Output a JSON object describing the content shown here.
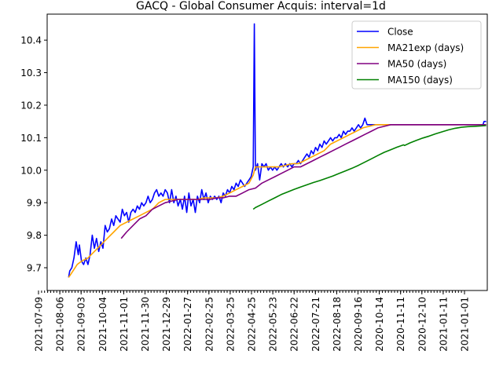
{
  "chart_data": {
    "type": "line",
    "title": "GACQ - Global Consumer Acquis: interval=1d",
    "xlabel": "",
    "ylabel": "",
    "ylim": [
      9.63,
      10.48
    ],
    "yticks": [
      "9.7",
      "9.8",
      "9.9",
      "10.0",
      "10.1",
      "10.2",
      "10.3",
      "10.4"
    ],
    "ytick_values": [
      9.7,
      9.8,
      9.9,
      10.0,
      10.1,
      10.2,
      10.3,
      10.4
    ],
    "xticks": [
      "2021-07-09",
      "2021-08-06",
      "2021-09-03",
      "2021-10-04",
      "2021-11-01",
      "2021-11-30",
      "2021-12-29",
      "2022-01-27",
      "2022-02-25",
      "2022-03-25",
      "2022-04-25",
      "2022-05-23",
      "2022-06-22",
      "2022-07-21",
      "2022-08-18",
      "2020-09-16",
      "2020-10-14",
      "2020-11-11",
      "2020-12-10",
      "2021-01-11",
      "2021-01-01"
    ],
    "xlim": [
      -2,
      408
    ],
    "legend": "top-right",
    "grid": false,
    "series": [
      {
        "name": "Close",
        "color": "#0000ff",
        "points": [
          [
            18,
            9.67
          ],
          [
            19,
            9.69
          ],
          [
            21,
            9.7
          ],
          [
            23,
            9.73
          ],
          [
            25,
            9.78
          ],
          [
            27,
            9.74
          ],
          [
            28,
            9.77
          ],
          [
            30,
            9.72
          ],
          [
            32,
            9.71
          ],
          [
            34,
            9.73
          ],
          [
            36,
            9.71
          ],
          [
            38,
            9.74
          ],
          [
            40,
            9.8
          ],
          [
            42,
            9.76
          ],
          [
            44,
            9.79
          ],
          [
            46,
            9.75
          ],
          [
            48,
            9.78
          ],
          [
            50,
            9.76
          ],
          [
            52,
            9.83
          ],
          [
            54,
            9.81
          ],
          [
            56,
            9.82
          ],
          [
            58,
            9.85
          ],
          [
            60,
            9.83
          ],
          [
            62,
            9.86
          ],
          [
            64,
            9.85
          ],
          [
            66,
            9.84
          ],
          [
            68,
            9.88
          ],
          [
            70,
            9.86
          ],
          [
            72,
            9.87
          ],
          [
            74,
            9.84
          ],
          [
            76,
            9.87
          ],
          [
            78,
            9.88
          ],
          [
            80,
            9.87
          ],
          [
            82,
            9.89
          ],
          [
            84,
            9.88
          ],
          [
            86,
            9.9
          ],
          [
            88,
            9.89
          ],
          [
            90,
            9.9
          ],
          [
            92,
            9.92
          ],
          [
            94,
            9.9
          ],
          [
            96,
            9.91
          ],
          [
            98,
            9.93
          ],
          [
            100,
            9.94
          ],
          [
            102,
            9.92
          ],
          [
            104,
            9.93
          ],
          [
            106,
            9.92
          ],
          [
            108,
            9.94
          ],
          [
            110,
            9.93
          ],
          [
            112,
            9.9
          ],
          [
            114,
            9.94
          ],
          [
            116,
            9.9
          ],
          [
            118,
            9.92
          ],
          [
            120,
            9.89
          ],
          [
            122,
            9.91
          ],
          [
            124,
            9.88
          ],
          [
            126,
            9.92
          ],
          [
            128,
            9.87
          ],
          [
            130,
            9.93
          ],
          [
            132,
            9.89
          ],
          [
            134,
            9.91
          ],
          [
            136,
            9.87
          ],
          [
            138,
            9.92
          ],
          [
            140,
            9.9
          ],
          [
            142,
            9.94
          ],
          [
            144,
            9.91
          ],
          [
            146,
            9.93
          ],
          [
            148,
            9.9
          ],
          [
            150,
            9.92
          ],
          [
            152,
            9.91
          ],
          [
            154,
            9.92
          ],
          [
            156,
            9.91
          ],
          [
            158,
            9.92
          ],
          [
            160,
            9.9
          ],
          [
            162,
            9.93
          ],
          [
            164,
            9.92
          ],
          [
            166,
            9.94
          ],
          [
            168,
            9.93
          ],
          [
            170,
            9.95
          ],
          [
            172,
            9.94
          ],
          [
            174,
            9.96
          ],
          [
            176,
            9.95
          ],
          [
            178,
            9.97
          ],
          [
            180,
            9.96
          ],
          [
            182,
            9.95
          ],
          [
            184,
            9.96
          ],
          [
            186,
            9.97
          ],
          [
            188,
            9.98
          ],
          [
            190,
            10.01
          ],
          [
            191,
            10.45
          ],
          [
            192,
            10.0
          ],
          [
            194,
            10.02
          ],
          [
            196,
            9.97
          ],
          [
            198,
            10.02
          ],
          [
            200,
            10.01
          ],
          [
            202,
            10.02
          ],
          [
            204,
            10.0
          ],
          [
            206,
            10.01
          ],
          [
            208,
            10.0
          ],
          [
            210,
            10.01
          ],
          [
            212,
            10.0
          ],
          [
            214,
            10.01
          ],
          [
            216,
            10.02
          ],
          [
            218,
            10.01
          ],
          [
            220,
            10.02
          ],
          [
            222,
            10.01
          ],
          [
            224,
            10.02
          ],
          [
            226,
            10.01
          ],
          [
            228,
            10.02
          ],
          [
            230,
            10.02
          ],
          [
            232,
            10.03
          ],
          [
            234,
            10.02
          ],
          [
            236,
            10.03
          ],
          [
            238,
            10.04
          ],
          [
            240,
            10.05
          ],
          [
            242,
            10.04
          ],
          [
            244,
            10.06
          ],
          [
            246,
            10.05
          ],
          [
            248,
            10.07
          ],
          [
            250,
            10.06
          ],
          [
            252,
            10.08
          ],
          [
            254,
            10.07
          ],
          [
            256,
            10.09
          ],
          [
            258,
            10.08
          ],
          [
            260,
            10.09
          ],
          [
            262,
            10.1
          ],
          [
            264,
            10.09
          ],
          [
            266,
            10.1
          ],
          [
            268,
            10.1
          ],
          [
            270,
            10.11
          ],
          [
            272,
            10.1
          ],
          [
            274,
            10.12
          ],
          [
            276,
            10.11
          ],
          [
            278,
            10.12
          ],
          [
            280,
            10.12
          ],
          [
            282,
            10.13
          ],
          [
            284,
            10.12
          ],
          [
            286,
            10.13
          ],
          [
            288,
            10.14
          ],
          [
            290,
            10.13
          ],
          [
            292,
            10.14
          ],
          [
            294,
            10.16
          ],
          [
            296,
            10.14
          ],
          [
            310,
            10.14
          ],
          [
            330,
            10.14
          ],
          [
            360,
            10.14
          ],
          [
            390,
            10.14
          ],
          [
            404,
            10.14
          ],
          [
            405,
            10.15
          ],
          [
            407,
            10.15
          ]
        ]
      },
      {
        "name": "MA21exp (days)",
        "color": "#ffa500",
        "points": [
          [
            18,
            9.67
          ],
          [
            22,
            9.69
          ],
          [
            26,
            9.71
          ],
          [
            30,
            9.72
          ],
          [
            36,
            9.73
          ],
          [
            42,
            9.75
          ],
          [
            48,
            9.77
          ],
          [
            54,
            9.79
          ],
          [
            60,
            9.81
          ],
          [
            66,
            9.83
          ],
          [
            72,
            9.84
          ],
          [
            78,
            9.85
          ],
          [
            84,
            9.86
          ],
          [
            90,
            9.87
          ],
          [
            96,
            9.88
          ],
          [
            102,
            9.9
          ],
          [
            108,
            9.91
          ],
          [
            114,
            9.91
          ],
          [
            120,
            9.91
          ],
          [
            126,
            9.91
          ],
          [
            132,
            9.91
          ],
          [
            138,
            9.91
          ],
          [
            144,
            9.915
          ],
          [
            150,
            9.915
          ],
          [
            156,
            9.915
          ],
          [
            162,
            9.92
          ],
          [
            168,
            9.93
          ],
          [
            174,
            9.94
          ],
          [
            180,
            9.95
          ],
          [
            186,
            9.96
          ],
          [
            190,
            9.985
          ],
          [
            192,
            10.01
          ],
          [
            196,
            10.01
          ],
          [
            202,
            10.01
          ],
          [
            208,
            10.01
          ],
          [
            214,
            10.01
          ],
          [
            220,
            10.015
          ],
          [
            226,
            10.02
          ],
          [
            232,
            10.02
          ],
          [
            238,
            10.03
          ],
          [
            244,
            10.04
          ],
          [
            250,
            10.05
          ],
          [
            256,
            10.06
          ],
          [
            262,
            10.08
          ],
          [
            268,
            10.09
          ],
          [
            274,
            10.1
          ],
          [
            280,
            10.11
          ],
          [
            286,
            10.12
          ],
          [
            292,
            10.13
          ],
          [
            298,
            10.135
          ],
          [
            304,
            10.14
          ],
          [
            320,
            10.14
          ],
          [
            350,
            10.14
          ],
          [
            380,
            10.14
          ],
          [
            407,
            10.14
          ]
        ]
      },
      {
        "name": "MA50 (days)",
        "color": "#800080",
        "points": [
          [
            67,
            9.79
          ],
          [
            72,
            9.81
          ],
          [
            78,
            9.83
          ],
          [
            84,
            9.85
          ],
          [
            90,
            9.86
          ],
          [
            96,
            9.88
          ],
          [
            102,
            9.89
          ],
          [
            108,
            9.9
          ],
          [
            114,
            9.905
          ],
          [
            120,
            9.91
          ],
          [
            126,
            9.91
          ],
          [
            132,
            9.91
          ],
          [
            138,
            9.91
          ],
          [
            144,
            9.91
          ],
          [
            150,
            9.91
          ],
          [
            156,
            9.915
          ],
          [
            162,
            9.915
          ],
          [
            168,
            9.92
          ],
          [
            174,
            9.92
          ],
          [
            180,
            9.93
          ],
          [
            186,
            9.94
          ],
          [
            192,
            9.945
          ],
          [
            198,
            9.96
          ],
          [
            204,
            9.97
          ],
          [
            210,
            9.98
          ],
          [
            216,
            9.99
          ],
          [
            222,
            10.0
          ],
          [
            228,
            10.01
          ],
          [
            234,
            10.01
          ],
          [
            240,
            10.02
          ],
          [
            246,
            10.03
          ],
          [
            252,
            10.04
          ],
          [
            258,
            10.05
          ],
          [
            264,
            10.06
          ],
          [
            270,
            10.07
          ],
          [
            276,
            10.08
          ],
          [
            282,
            10.09
          ],
          [
            288,
            10.1
          ],
          [
            294,
            10.11
          ],
          [
            300,
            10.12
          ],
          [
            306,
            10.13
          ],
          [
            312,
            10.135
          ],
          [
            318,
            10.14
          ],
          [
            340,
            10.14
          ],
          [
            370,
            10.14
          ],
          [
            407,
            10.14
          ]
        ]
      },
      {
        "name": "MA150 (days)",
        "color": "#008000",
        "points": [
          [
            190,
            9.88
          ],
          [
            192,
            9.885
          ],
          [
            198,
            9.895
          ],
          [
            204,
            9.905
          ],
          [
            210,
            9.915
          ],
          [
            216,
            9.925
          ],
          [
            222,
            9.933
          ],
          [
            228,
            9.941
          ],
          [
            234,
            9.948
          ],
          [
            240,
            9.955
          ],
          [
            246,
            9.962
          ],
          [
            252,
            9.968
          ],
          [
            258,
            9.975
          ],
          [
            264,
            9.982
          ],
          [
            270,
            9.99
          ],
          [
            276,
            9.998
          ],
          [
            282,
            10.006
          ],
          [
            288,
            10.015
          ],
          [
            294,
            10.025
          ],
          [
            300,
            10.035
          ],
          [
            306,
            10.045
          ],
          [
            312,
            10.055
          ],
          [
            318,
            10.063
          ],
          [
            324,
            10.071
          ],
          [
            330,
            10.078
          ],
          [
            331,
            10.076
          ],
          [
            336,
            10.084
          ],
          [
            342,
            10.092
          ],
          [
            348,
            10.099
          ],
          [
            354,
            10.105
          ],
          [
            360,
            10.112
          ],
          [
            366,
            10.118
          ],
          [
            372,
            10.124
          ],
          [
            378,
            10.129
          ],
          [
            384,
            10.132
          ],
          [
            390,
            10.134
          ],
          [
            396,
            10.135
          ],
          [
            407,
            10.137
          ]
        ]
      }
    ]
  }
}
